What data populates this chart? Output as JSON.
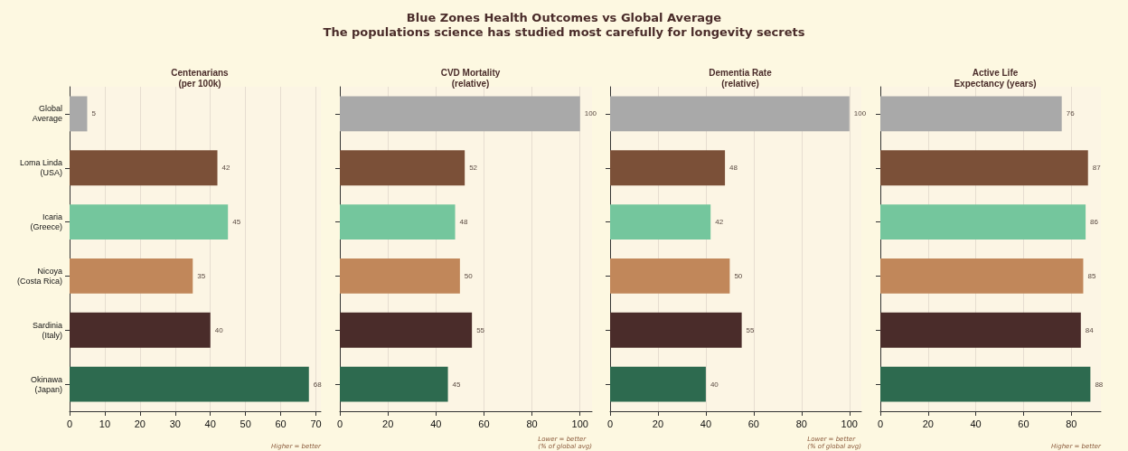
{
  "chart_data": [
    {
      "type": "other",
      "title": "Blue Zones Health Outcomes vs Global Average",
      "subtitle": "The populations science has studied most carefully for longevity secrets"
    },
    {
      "type": "bar",
      "orientation": "horizontal",
      "title": "Centenarians\n(per 100k)",
      "categories": [
        "Global\nAverage",
        "Loma Linda\n(USA)",
        "Icaria\n(Greece)",
        "Nicoya\n(Costa Rica)",
        "Sardinia\n(Italy)",
        "Okinawa\n(Japan)"
      ],
      "values": [
        5,
        42,
        45,
        35,
        40,
        68
      ],
      "colors": [
        "#a9a9a9",
        "#7b5038",
        "#74c69d",
        "#c1875a",
        "#4a2c2a",
        "#2d6a4f"
      ],
      "xlim": [
        0,
        71.4
      ],
      "xticks": [
        0,
        10,
        20,
        30,
        40,
        50,
        60,
        70
      ],
      "grid": "x",
      "data_labels": true,
      "annotations": [
        "Higher = better"
      ]
    },
    {
      "type": "bar",
      "orientation": "horizontal",
      "title": "CVD Mortality\n(relative)",
      "categories": [
        null,
        null,
        null,
        null,
        null,
        null
      ],
      "values": [
        100,
        52,
        48,
        50,
        55,
        45
      ],
      "colors": [
        "#a9a9a9",
        "#7b5038",
        "#74c69d",
        "#c1875a",
        "#4a2c2a",
        "#2d6a4f"
      ],
      "xlim": [
        0,
        105
      ],
      "xticks": [
        0,
        20,
        40,
        60,
        80,
        100
      ],
      "grid": "x",
      "data_labels": true,
      "annotations": [
        "Lower = better\n(% of global avg)"
      ]
    },
    {
      "type": "bar",
      "orientation": "horizontal",
      "title": "Dementia Rate\n(relative)",
      "categories": [
        null,
        null,
        null,
        null,
        null,
        null
      ],
      "values": [
        100,
        48,
        42,
        50,
        55,
        40
      ],
      "colors": [
        "#a9a9a9",
        "#7b5038",
        "#74c69d",
        "#c1875a",
        "#4a2c2a",
        "#2d6a4f"
      ],
      "xlim": [
        0,
        105
      ],
      "xticks": [
        0,
        20,
        40,
        60,
        80,
        100
      ],
      "grid": "x",
      "data_labels": true,
      "annotations": [
        "Lower = better\n(% of global avg)"
      ]
    },
    {
      "type": "bar",
      "orientation": "horizontal",
      "title": "Active Life\nExpectancy (years)",
      "categories": [
        null,
        null,
        null,
        null,
        null,
        null
      ],
      "values": [
        76,
        87,
        86,
        85,
        84,
        88
      ],
      "colors": [
        "#a9a9a9",
        "#7b5038",
        "#74c69d",
        "#c1875a",
        "#4a2c2a",
        "#2d6a4f"
      ],
      "xlim": [
        0,
        92.4
      ],
      "xticks": [
        0,
        20,
        40,
        60,
        80
      ],
      "grid": "x",
      "data_labels": true,
      "annotations": [
        "Higher = better"
      ]
    }
  ]
}
